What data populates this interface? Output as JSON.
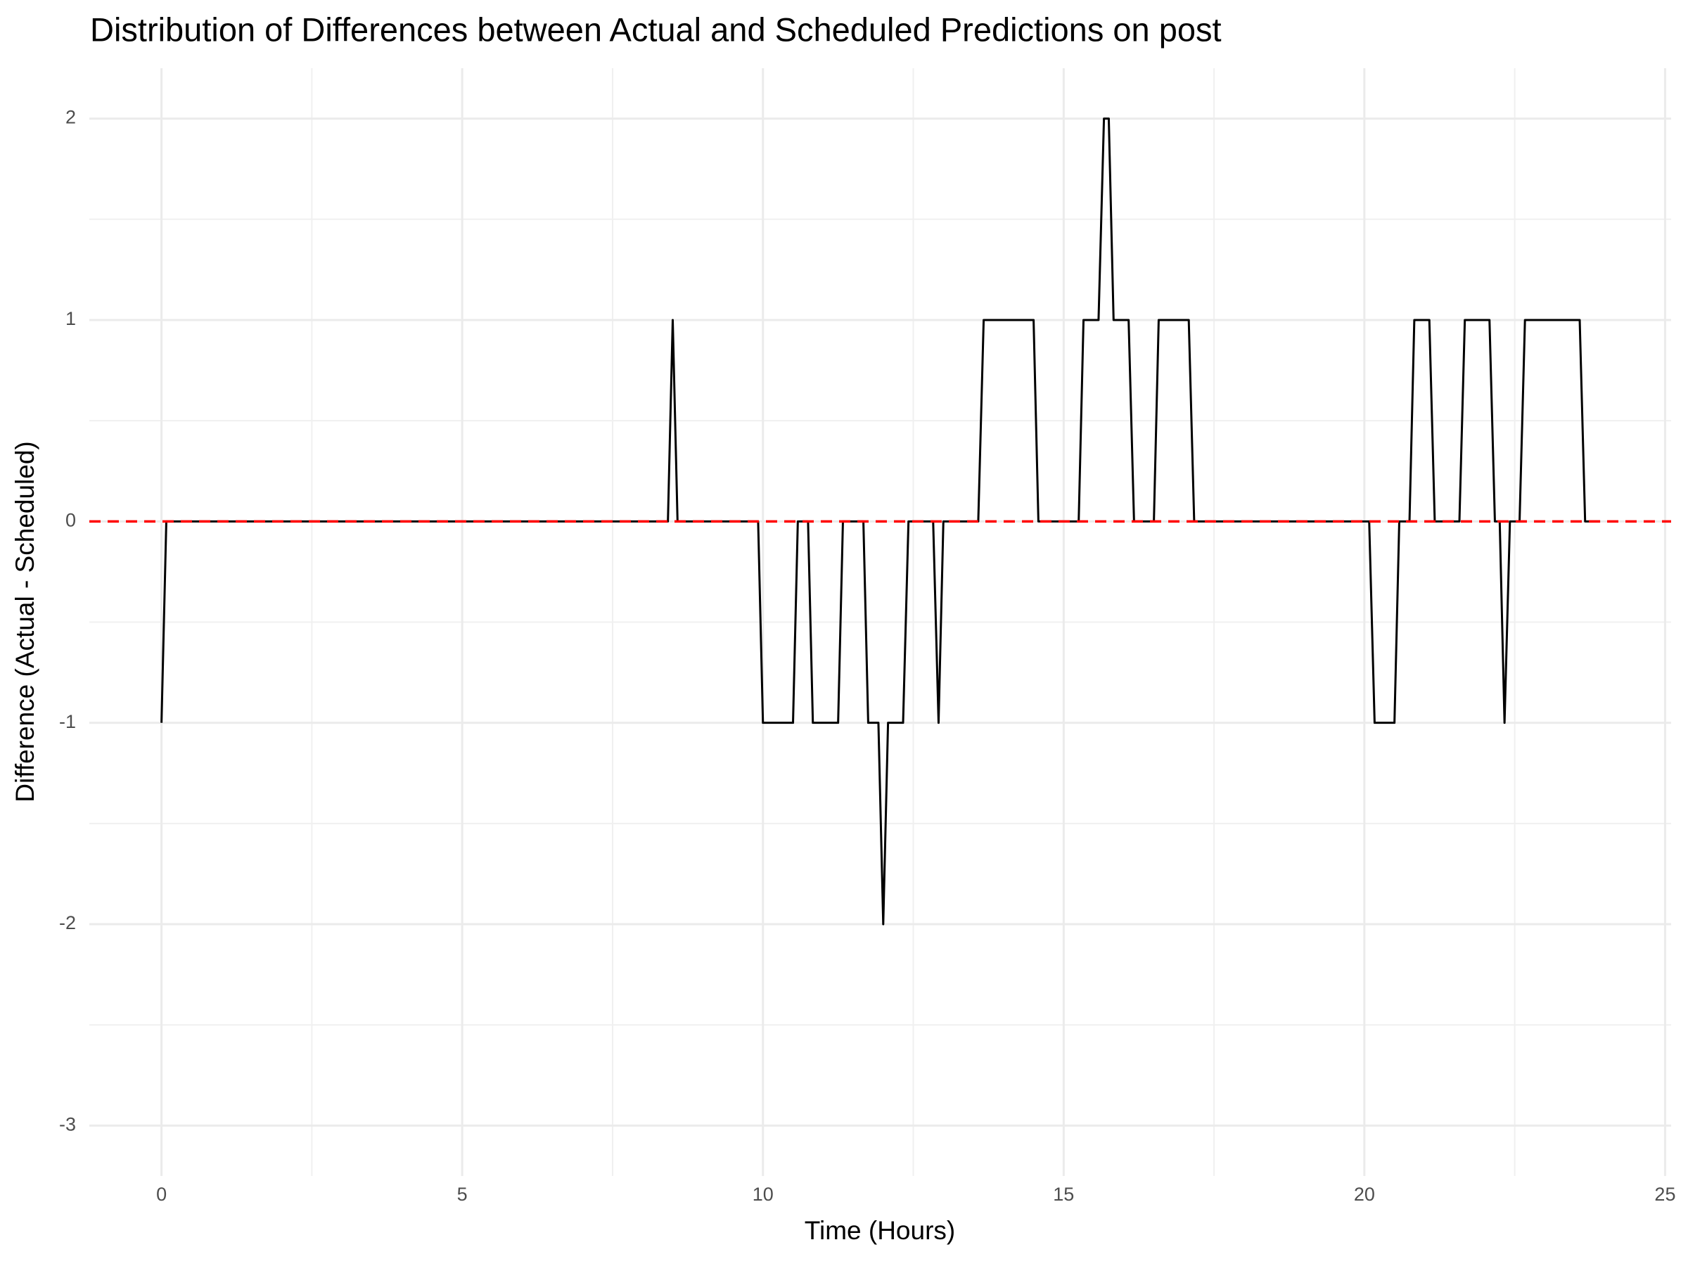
{
  "chart_data": {
    "type": "line",
    "title": "Distribution of Differences between Actual and Scheduled Predictions on post",
    "x_label": "Time (Hours)",
    "y_label": "Difference (Actual - Scheduled)",
    "x": [
      0,
      0.08,
      8.42,
      8.5,
      8.58,
      9.92,
      10,
      10.5,
      10.58,
      10.75,
      10.83,
      11.25,
      11.33,
      11.67,
      11.75,
      11.92,
      12,
      12.08,
      12.33,
      12.42,
      12.83,
      12.92,
      13,
      13.58,
      13.67,
      14.5,
      14.58,
      15.25,
      15.33,
      15.58,
      15.67,
      15.75,
      15.83,
      16.08,
      16.17,
      16.5,
      16.58,
      17.08,
      17.17,
      20.08,
      20.17,
      20.5,
      20.58,
      20.75,
      20.83,
      21.08,
      21.17,
      21.58,
      21.67,
      22.08,
      22.17,
      22.25,
      22.33,
      22.42,
      22.58,
      22.67,
      23.58,
      23.67,
      23.92
    ],
    "values": [
      -1,
      0,
      0,
      1,
      0,
      0,
      -1,
      -1,
      0,
      0,
      -1,
      -1,
      0,
      0,
      -1,
      -1,
      -2,
      -1,
      -1,
      0,
      0,
      -1,
      0,
      0,
      1,
      1,
      0,
      0,
      1,
      1,
      2,
      2,
      1,
      1,
      0,
      0,
      1,
      1,
      0,
      0,
      -1,
      -1,
      0,
      0,
      1,
      1,
      0,
      0,
      1,
      1,
      0,
      0,
      -1,
      0,
      0,
      1,
      1,
      0,
      0
    ],
    "color": "#000000",
    "reference_line": {
      "value": 0,
      "color": "#ff0000"
    },
    "xlim": [
      -1.2,
      25.1
    ],
    "xticks": [
      0,
      5,
      10,
      15,
      20,
      25
    ],
    "ylim": [
      -3.25,
      2.25
    ],
    "yticks": [
      -3,
      -2,
      -1,
      0,
      1,
      2
    ],
    "grid": true
  }
}
